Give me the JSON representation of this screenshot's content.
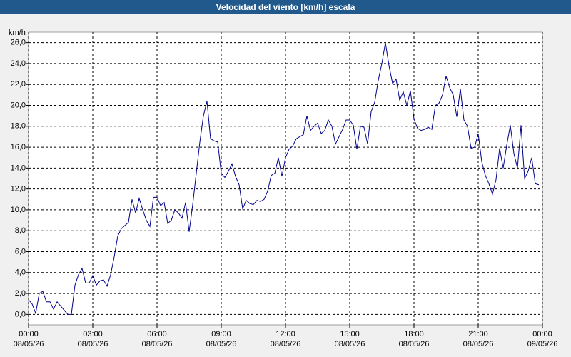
{
  "chart_data": {
    "type": "line",
    "title": "Velocidad del viento [km/h] escala",
    "y_label": "km/h",
    "x": [
      0,
      10,
      20,
      30,
      40,
      50,
      60,
      70,
      80,
      90,
      100,
      110,
      120,
      130,
      140,
      150,
      160,
      170,
      180,
      190,
      200,
      210,
      220,
      230,
      240,
      250,
      260,
      270,
      280,
      290,
      300,
      310,
      320,
      330,
      340,
      350,
      360,
      370,
      380,
      390,
      400,
      410,
      420,
      430,
      440,
      450,
      460,
      470,
      480,
      490,
      500,
      510,
      520,
      530,
      540,
      550,
      560,
      570,
      580,
      590,
      600,
      610,
      620,
      630,
      640,
      650,
      660,
      670,
      680,
      690,
      700,
      710,
      720,
      730,
      740,
      750,
      760,
      770,
      780,
      790,
      800,
      810,
      820,
      830,
      840,
      850,
      860,
      870,
      880,
      890,
      900,
      910,
      920,
      930,
      940,
      950,
      960,
      970,
      980,
      990,
      1000,
      1010,
      1020,
      1030,
      1040,
      1050,
      1060,
      1070,
      1080,
      1090,
      1100,
      1110,
      1120,
      1130,
      1140,
      1150,
      1160,
      1170,
      1180,
      1190,
      1200,
      1210,
      1220,
      1230,
      1240,
      1250,
      1260,
      1270,
      1280,
      1290,
      1300,
      1310,
      1320,
      1330,
      1340,
      1350,
      1360,
      1370,
      1380,
      1390,
      1400,
      1410,
      1420,
      1430
    ],
    "series": [
      {
        "name": "Velocidad del viento",
        "color": "#00008b",
        "values": [
          1.4,
          1.0,
          0.1,
          2.0,
          2.2,
          1.2,
          1.2,
          0.5,
          1.2,
          0.8,
          0.4,
          0.0,
          0.0,
          2.8,
          3.8,
          4.4,
          3.0,
          3.0,
          3.7,
          2.8,
          3.2,
          3.3,
          2.7,
          3.8,
          5.5,
          7.5,
          8.2,
          8.5,
          8.8,
          11.0,
          9.7,
          11.1,
          10.0,
          9.0,
          8.4,
          11.2,
          11.2,
          10.4,
          10.7,
          8.7,
          9.0,
          10.0,
          9.7,
          9.2,
          10.7,
          7.9,
          10.5,
          13.5,
          16.5,
          19.0,
          20.4,
          16.8,
          16.6,
          16.5,
          13.5,
          13.1,
          13.7,
          14.4,
          13.2,
          12.4,
          10.1,
          10.9,
          10.6,
          10.5,
          10.9,
          10.8,
          11.0,
          11.8,
          13.3,
          13.5,
          15.0,
          13.2,
          15.0,
          15.8,
          16.1,
          16.8,
          17.0,
          17.2,
          19.0,
          17.6,
          18.0,
          18.3,
          17.3,
          17.6,
          18.6,
          18.0,
          16.3,
          17.0,
          17.7,
          18.6,
          18.6,
          18.1,
          15.8,
          18.0,
          17.9,
          16.3,
          19.4,
          20.3,
          22.4,
          24.0,
          26.0,
          23.8,
          22.1,
          22.5,
          20.5,
          21.3,
          20.0,
          21.4,
          18.7,
          17.8,
          17.6,
          17.7,
          17.9,
          17.7,
          20.0,
          20.2,
          21.0,
          22.8,
          21.7,
          21.0,
          18.9,
          21.6,
          18.6,
          18.0,
          15.9,
          16.0,
          17.3,
          14.6,
          13.3,
          12.5,
          11.5,
          12.9,
          15.9,
          14.0,
          16.2,
          18.1,
          15.4,
          14.0,
          18.1,
          13.0,
          13.7,
          15.0,
          12.5,
          12.4
        ]
      }
    ],
    "xlim": [
      0,
      1440
    ],
    "xticks": [
      {
        "value": 0,
        "label": "00:00\n08/05/26"
      },
      {
        "value": 180,
        "label": "03:00\n08/05/26"
      },
      {
        "value": 360,
        "label": "06:00\n08/05/26"
      },
      {
        "value": 540,
        "label": "09:00\n08/05/26"
      },
      {
        "value": 720,
        "label": "12:00\n08/05/26"
      },
      {
        "value": 900,
        "label": "15:00\n08/05/26"
      },
      {
        "value": 1080,
        "label": "18:00\n08/05/26"
      },
      {
        "value": 1260,
        "label": "21:00\n08/05/26"
      },
      {
        "value": 1440,
        "label": "00:00\n09/05/26"
      }
    ],
    "ylim": [
      -1,
      27
    ],
    "yticks": [
      {
        "value": 0,
        "label": "0,0"
      },
      {
        "value": 2,
        "label": "2,0"
      },
      {
        "value": 4,
        "label": "4,0"
      },
      {
        "value": 6,
        "label": "6,0"
      },
      {
        "value": 8,
        "label": "8,0"
      },
      {
        "value": 10,
        "label": "10,0"
      },
      {
        "value": 12,
        "label": "12,0"
      },
      {
        "value": 14,
        "label": "14,0"
      },
      {
        "value": 16,
        "label": "16,0"
      },
      {
        "value": 18,
        "label": "18,0"
      },
      {
        "value": 20,
        "label": "20,0"
      },
      {
        "value": 22,
        "label": "22,0"
      },
      {
        "value": 24,
        "label": "24,0"
      },
      {
        "value": 26,
        "label": "26,0"
      }
    ],
    "grid": true
  }
}
